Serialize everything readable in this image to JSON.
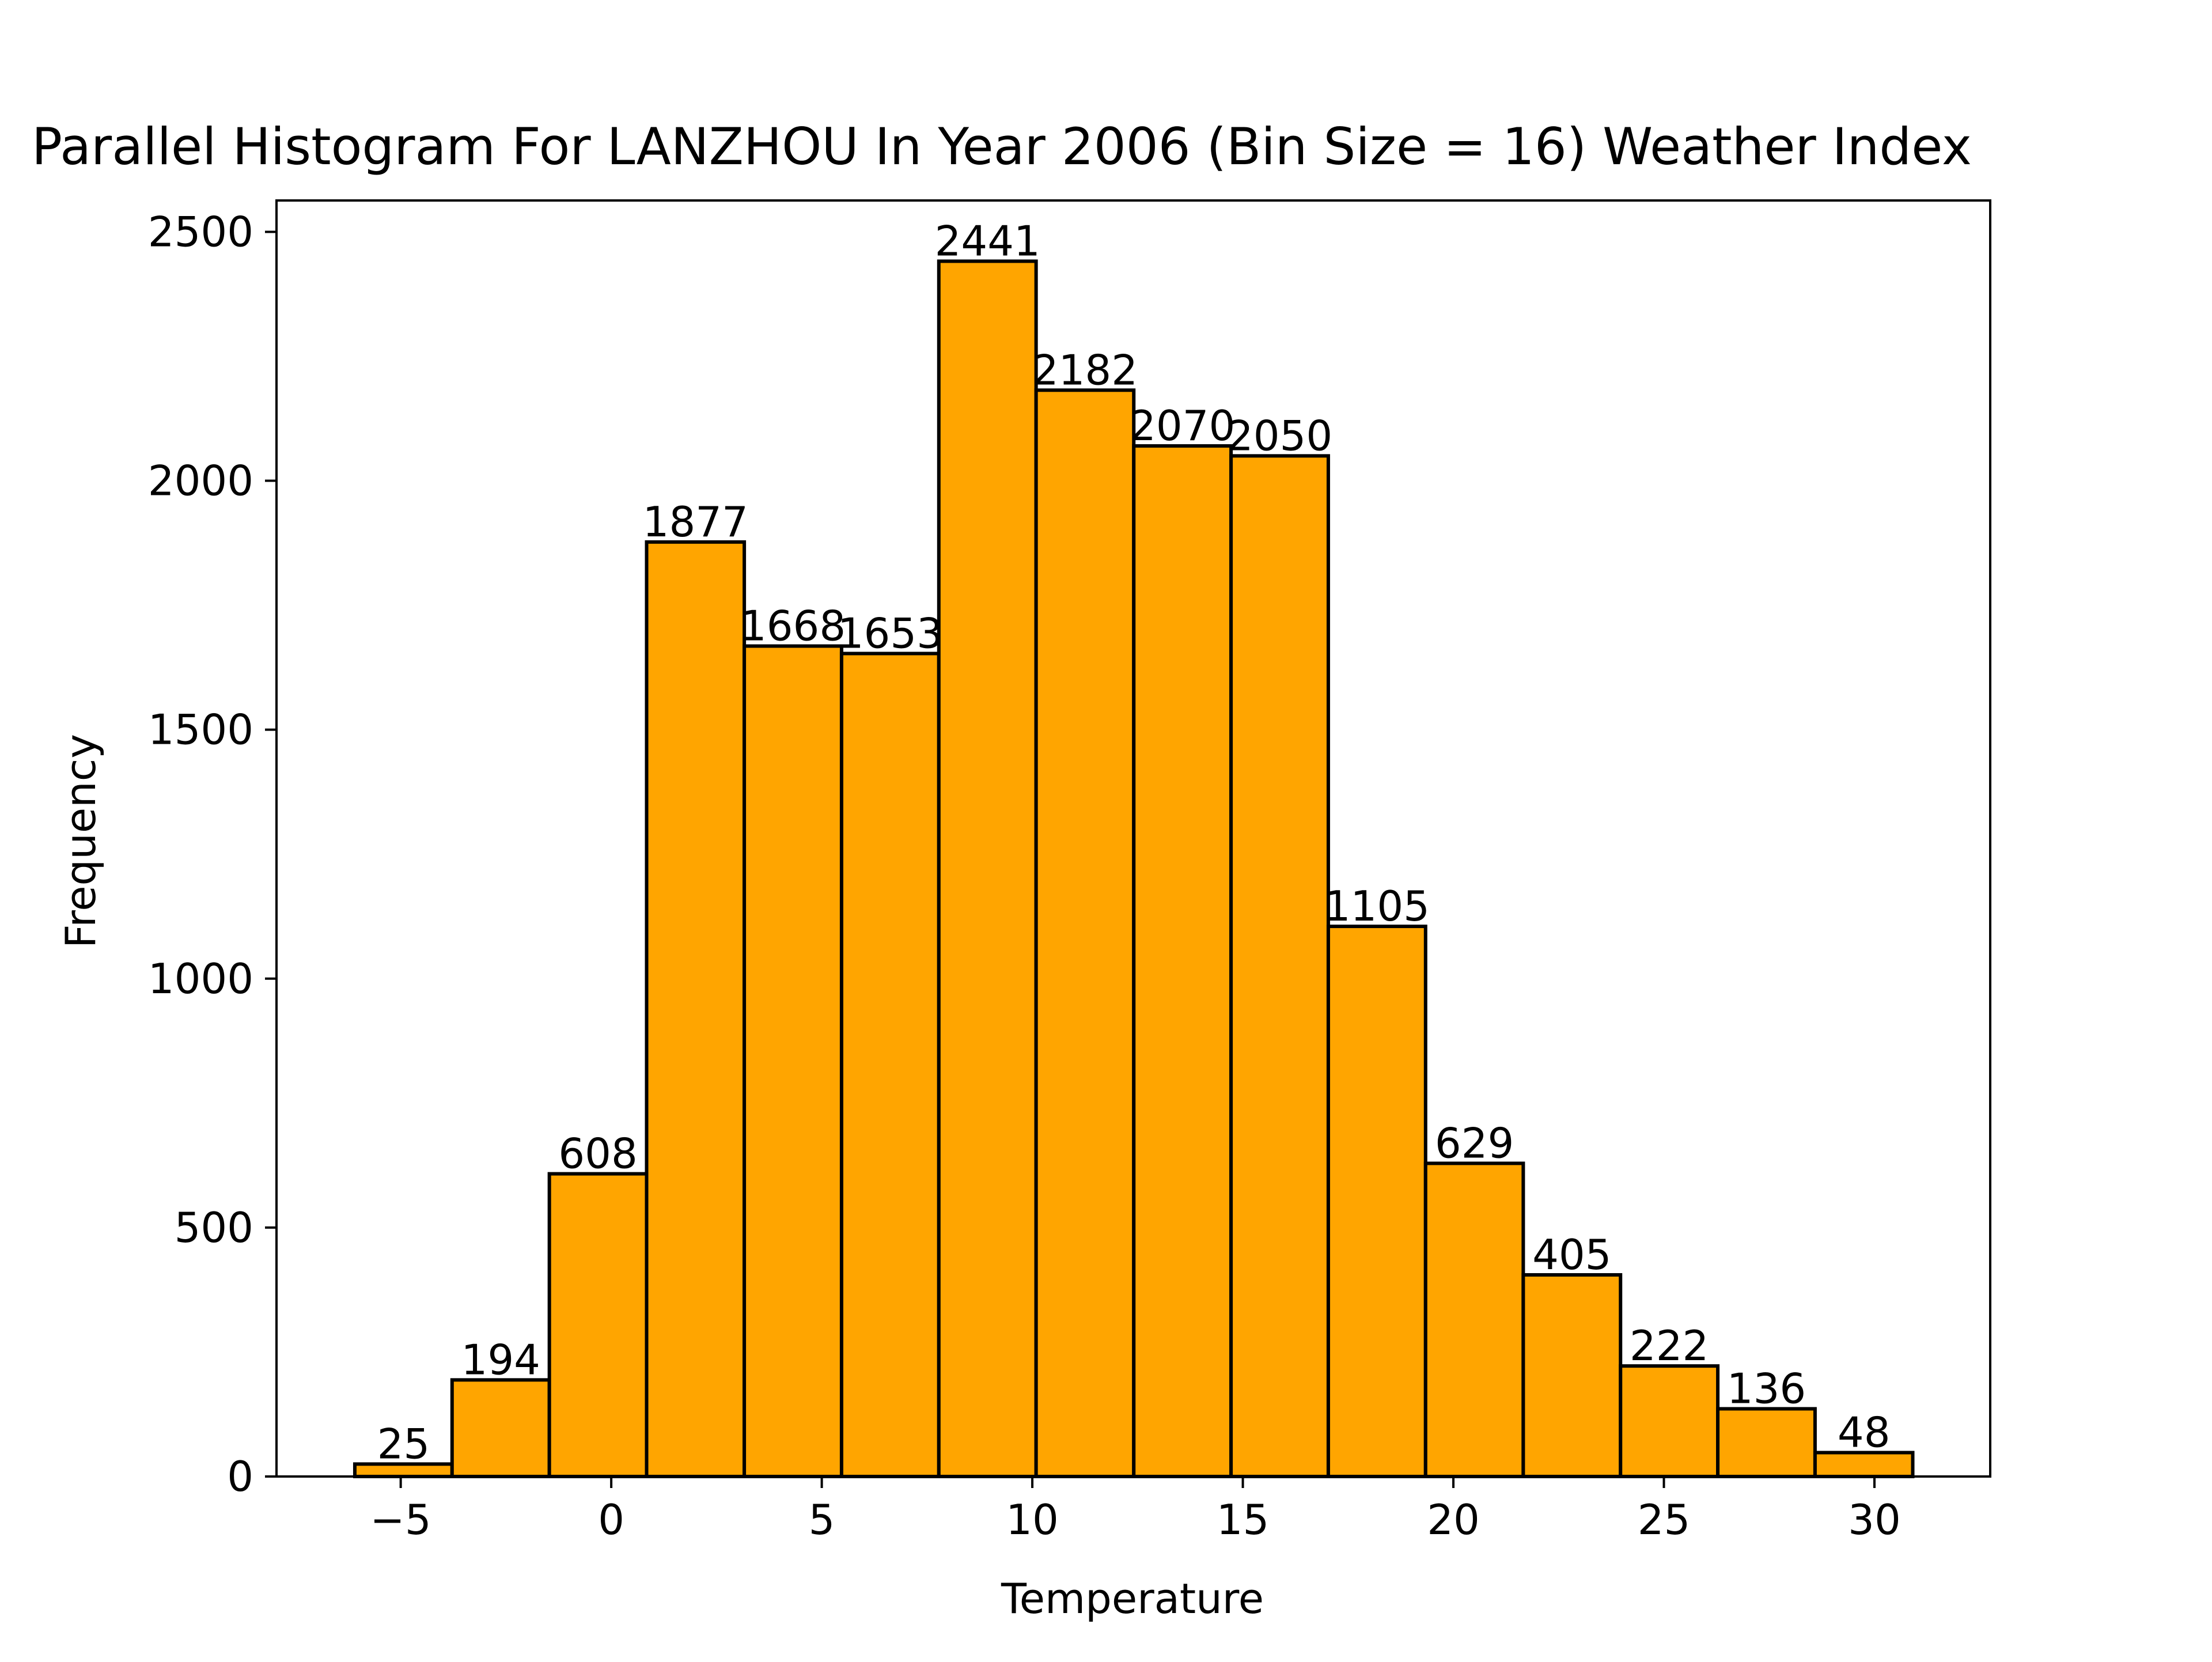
{
  "chart_data": {
    "type": "bar",
    "title": "Parallel Histogram For LANZHOU In Year 2006 (Bin Size = 16) Weather Index",
    "xlabel": "Temperature",
    "ylabel": "Frequency",
    "bin_edges": [
      -6.09,
      -3.78,
      -1.47,
      0.84,
      3.16,
      5.47,
      7.78,
      10.09,
      12.41,
      14.72,
      17.03,
      19.34,
      21.66,
      23.97,
      26.28,
      28.59,
      30.91
    ],
    "values": [
      25,
      194,
      608,
      1877,
      1668,
      1653,
      2441,
      2182,
      2070,
      2050,
      1105,
      629,
      405,
      222,
      136,
      48
    ],
    "data_labels": [
      "25",
      "194",
      "608",
      "1877",
      "1668",
      "1653",
      "2441",
      "2182",
      "2070",
      "2050",
      "1105",
      "629",
      "405",
      "222",
      "136",
      "48"
    ],
    "xlim": [
      -7.95,
      32.75
    ],
    "ylim": [
      0,
      2563
    ],
    "x_ticks": [
      -5,
      0,
      5,
      10,
      15,
      20,
      25,
      30
    ],
    "x_tick_labels": [
      "−5",
      "0",
      "5",
      "10",
      "15",
      "20",
      "25",
      "30"
    ],
    "y_ticks": [
      0,
      500,
      1000,
      1500,
      2000,
      2500
    ],
    "y_tick_labels": [
      "0",
      "500",
      "1000",
      "1500",
      "2000",
      "2500"
    ],
    "grid": false,
    "legend": "none",
    "colors": {
      "bar_fill": "#ffa500",
      "bar_edge": "#000000",
      "axis": "#000000",
      "text": "#000000"
    }
  }
}
